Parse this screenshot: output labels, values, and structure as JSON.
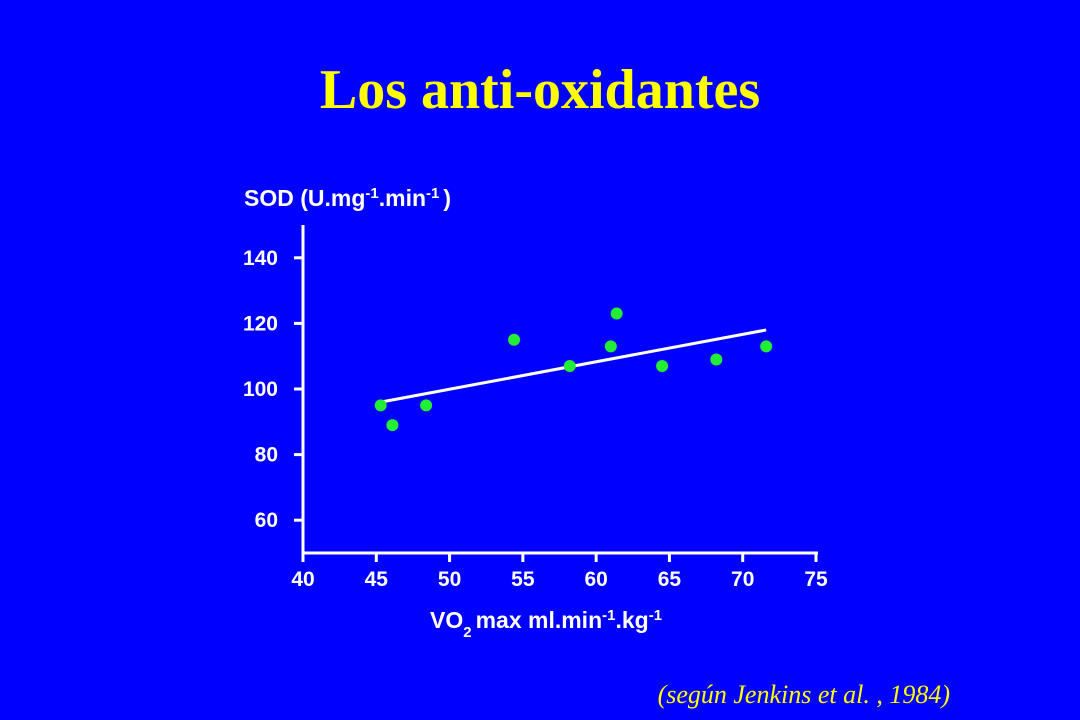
{
  "title": "Los anti-oxidantes",
  "source_note": "(según Jenkins et al. , 1984)",
  "colors": {
    "background": "#0000ff",
    "title": "#ffff00",
    "axes": "#ffffff",
    "points": "#22ee33",
    "trendline": "#ffffff"
  },
  "chart_data": {
    "type": "scatter",
    "ylabel": {
      "main": "SOD (U.mg",
      "sup1": "-1",
      "mid": ".min",
      "sup2": "-1",
      "end": ")"
    },
    "xlabel": {
      "pre": "VO",
      "sub": "2",
      "main": "max ml.min",
      "sup1": "-1",
      "mid": ".kg",
      "sup2": "-1"
    },
    "xlim": [
      40,
      75
    ],
    "ylim": [
      50,
      150
    ],
    "xticks": [
      40,
      45,
      50,
      55,
      60,
      65,
      70,
      75
    ],
    "yticks": [
      60,
      80,
      100,
      120,
      140
    ],
    "points": [
      {
        "x": 45.3,
        "y": 95
      },
      {
        "x": 46.1,
        "y": 89
      },
      {
        "x": 48.4,
        "y": 95
      },
      {
        "x": 54.4,
        "y": 115
      },
      {
        "x": 58.2,
        "y": 107
      },
      {
        "x": 61.0,
        "y": 113
      },
      {
        "x": 61.4,
        "y": 123
      },
      {
        "x": 64.5,
        "y": 107
      },
      {
        "x": 68.2,
        "y": 109
      },
      {
        "x": 71.6,
        "y": 113
      }
    ],
    "trendline": {
      "x1": 45.3,
      "y1": 96,
      "x2": 71.6,
      "y2": 118
    },
    "grid": false,
    "legend": "none"
  }
}
